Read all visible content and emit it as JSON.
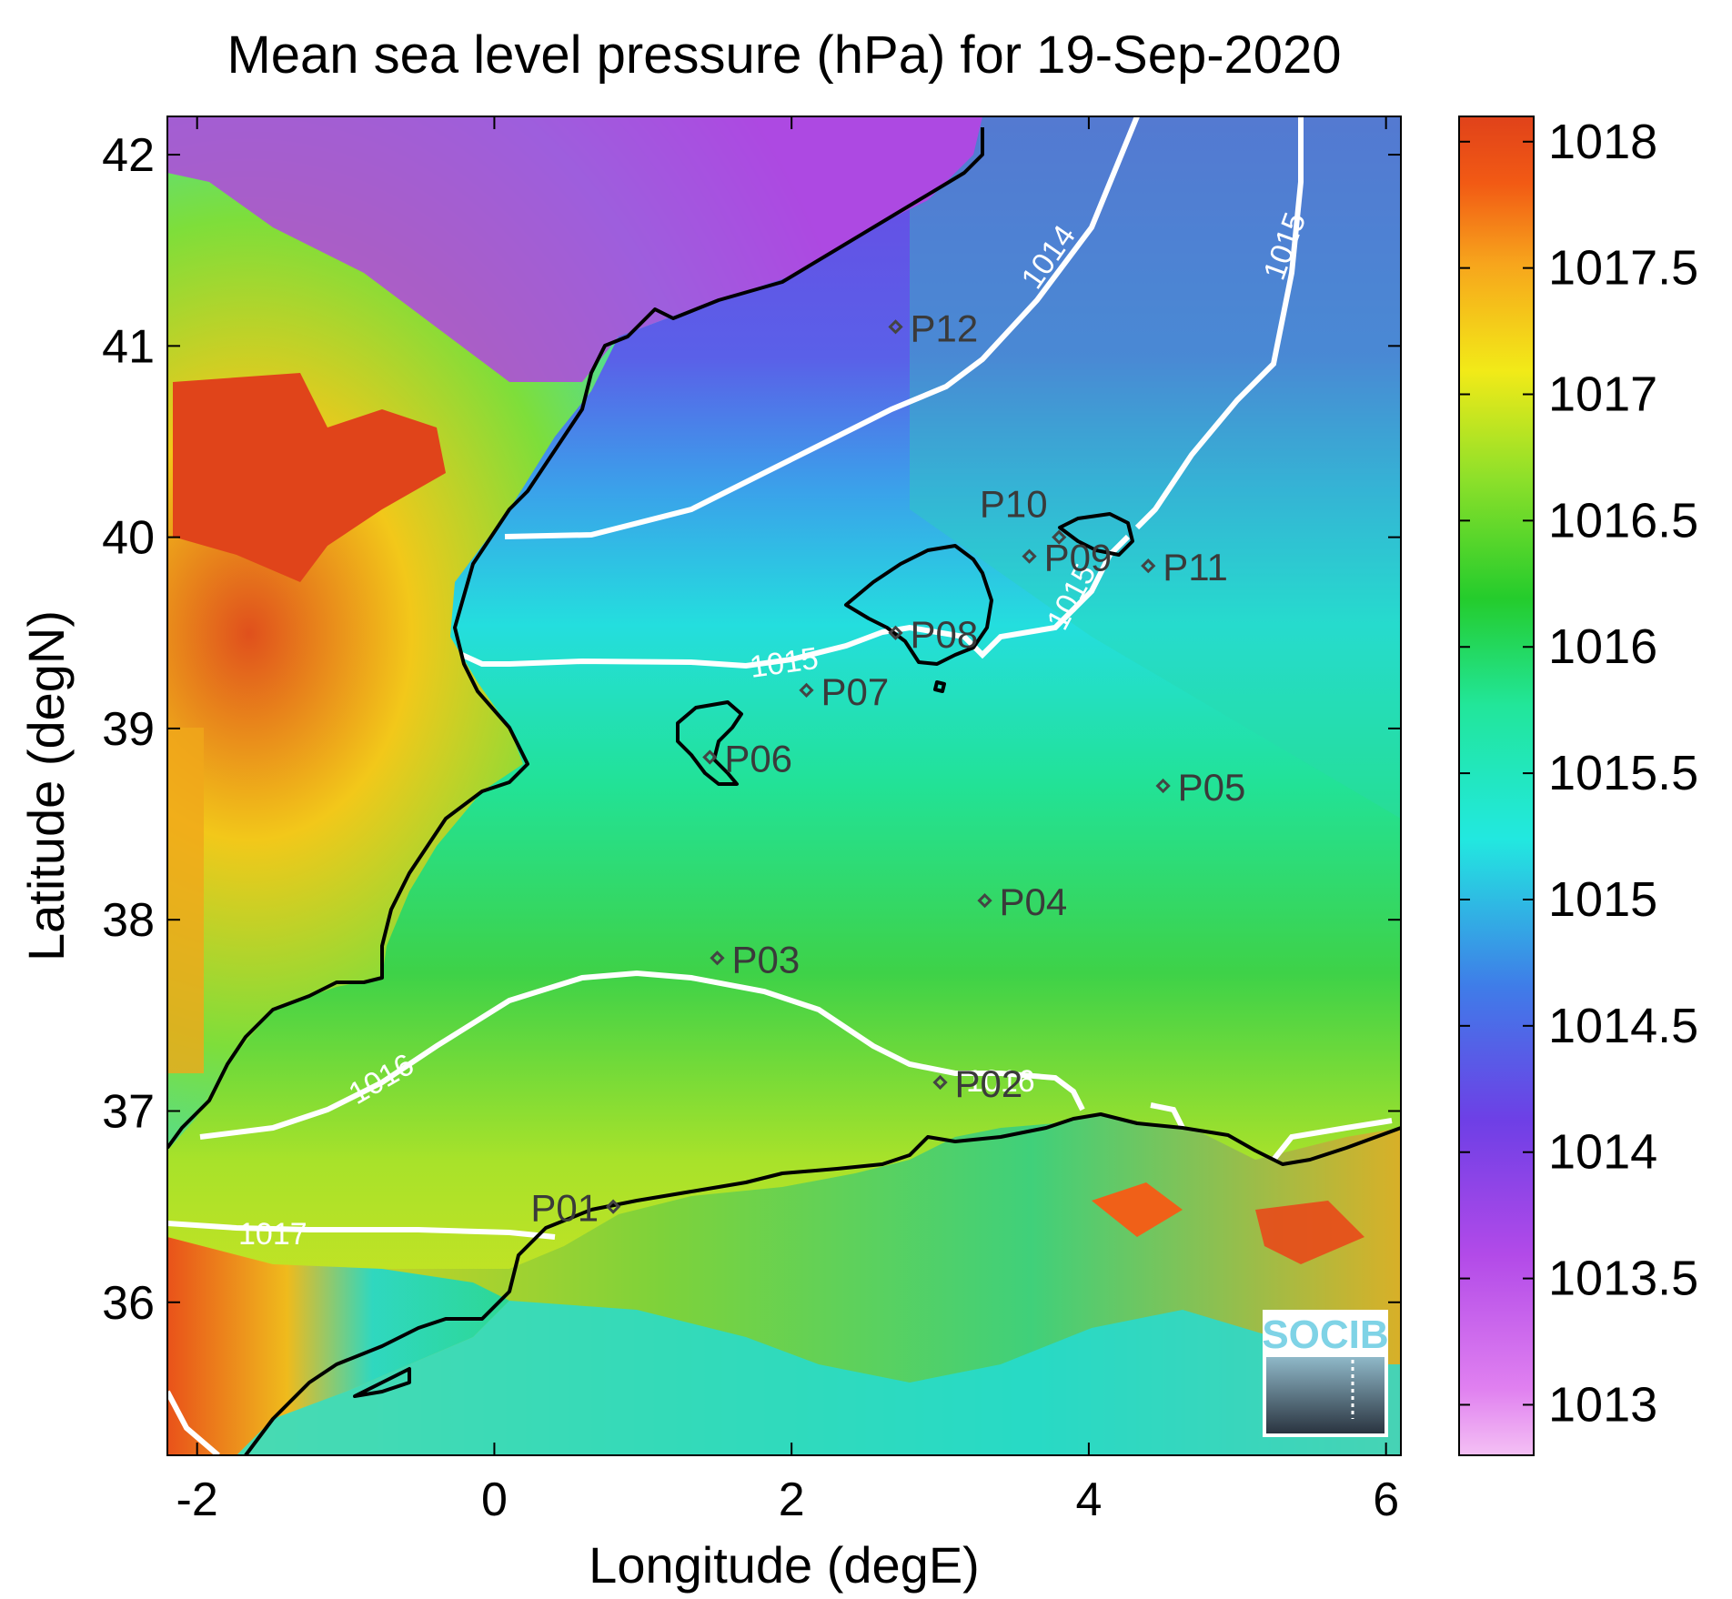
{
  "title": "Mean sea level pressure (hPa) for 19-Sep-2020",
  "xlabel": "Longitude (degE)",
  "ylabel": "Latitude (degN)",
  "xlim": [
    -2.2,
    6.1
  ],
  "ylim": [
    35.2,
    42.2
  ],
  "xticks": [
    "-2",
    "0",
    "2",
    "4",
    "6"
  ],
  "yticks": [
    "36",
    "37",
    "38",
    "39",
    "40",
    "41",
    "42"
  ],
  "colorbar": {
    "range": [
      1012.8,
      1018.1
    ],
    "ticks": [
      "1013",
      "1013.5",
      "1014",
      "1014.5",
      "1015",
      "1015.5",
      "1016",
      "1016.5",
      "1017",
      "1017.5",
      "1018"
    ]
  },
  "contours": [
    {
      "label": "1014"
    },
    {
      "label": "1015"
    },
    {
      "label": "1015"
    },
    {
      "label": "1015"
    },
    {
      "label": "1016"
    },
    {
      "label": "1016"
    },
    {
      "label": "1017"
    }
  ],
  "points": [
    {
      "name": "P01",
      "lon": 0.8,
      "lat": 36.5
    },
    {
      "name": "P02",
      "lon": 3.0,
      "lat": 37.15
    },
    {
      "name": "P03",
      "lon": 1.5,
      "lat": 37.8
    },
    {
      "name": "P04",
      "lon": 3.3,
      "lat": 38.1
    },
    {
      "name": "P05",
      "lon": 4.5,
      "lat": 38.7
    },
    {
      "name": "P06",
      "lon": 1.45,
      "lat": 38.85
    },
    {
      "name": "P07",
      "lon": 2.1,
      "lat": 39.2
    },
    {
      "name": "P08",
      "lon": 2.7,
      "lat": 39.5
    },
    {
      "name": "P09",
      "lon": 3.6,
      "lat": 39.9
    },
    {
      "name": "P10",
      "lon": 3.8,
      "lat": 40.0
    },
    {
      "name": "P11",
      "lon": 4.4,
      "lat": 39.85
    },
    {
      "name": "P12",
      "lon": 2.7,
      "lat": 41.1
    }
  ],
  "logo": "SOCIB",
  "colors": {
    "high": "#e0421a",
    "mid_high": "#f2e51a",
    "mid": "#24c832",
    "mid_low": "#1fe6dc",
    "low": "#6e3fe6",
    "lowest": "#f0b8f0",
    "contour": "#ffffff",
    "coast": "#000000"
  }
}
